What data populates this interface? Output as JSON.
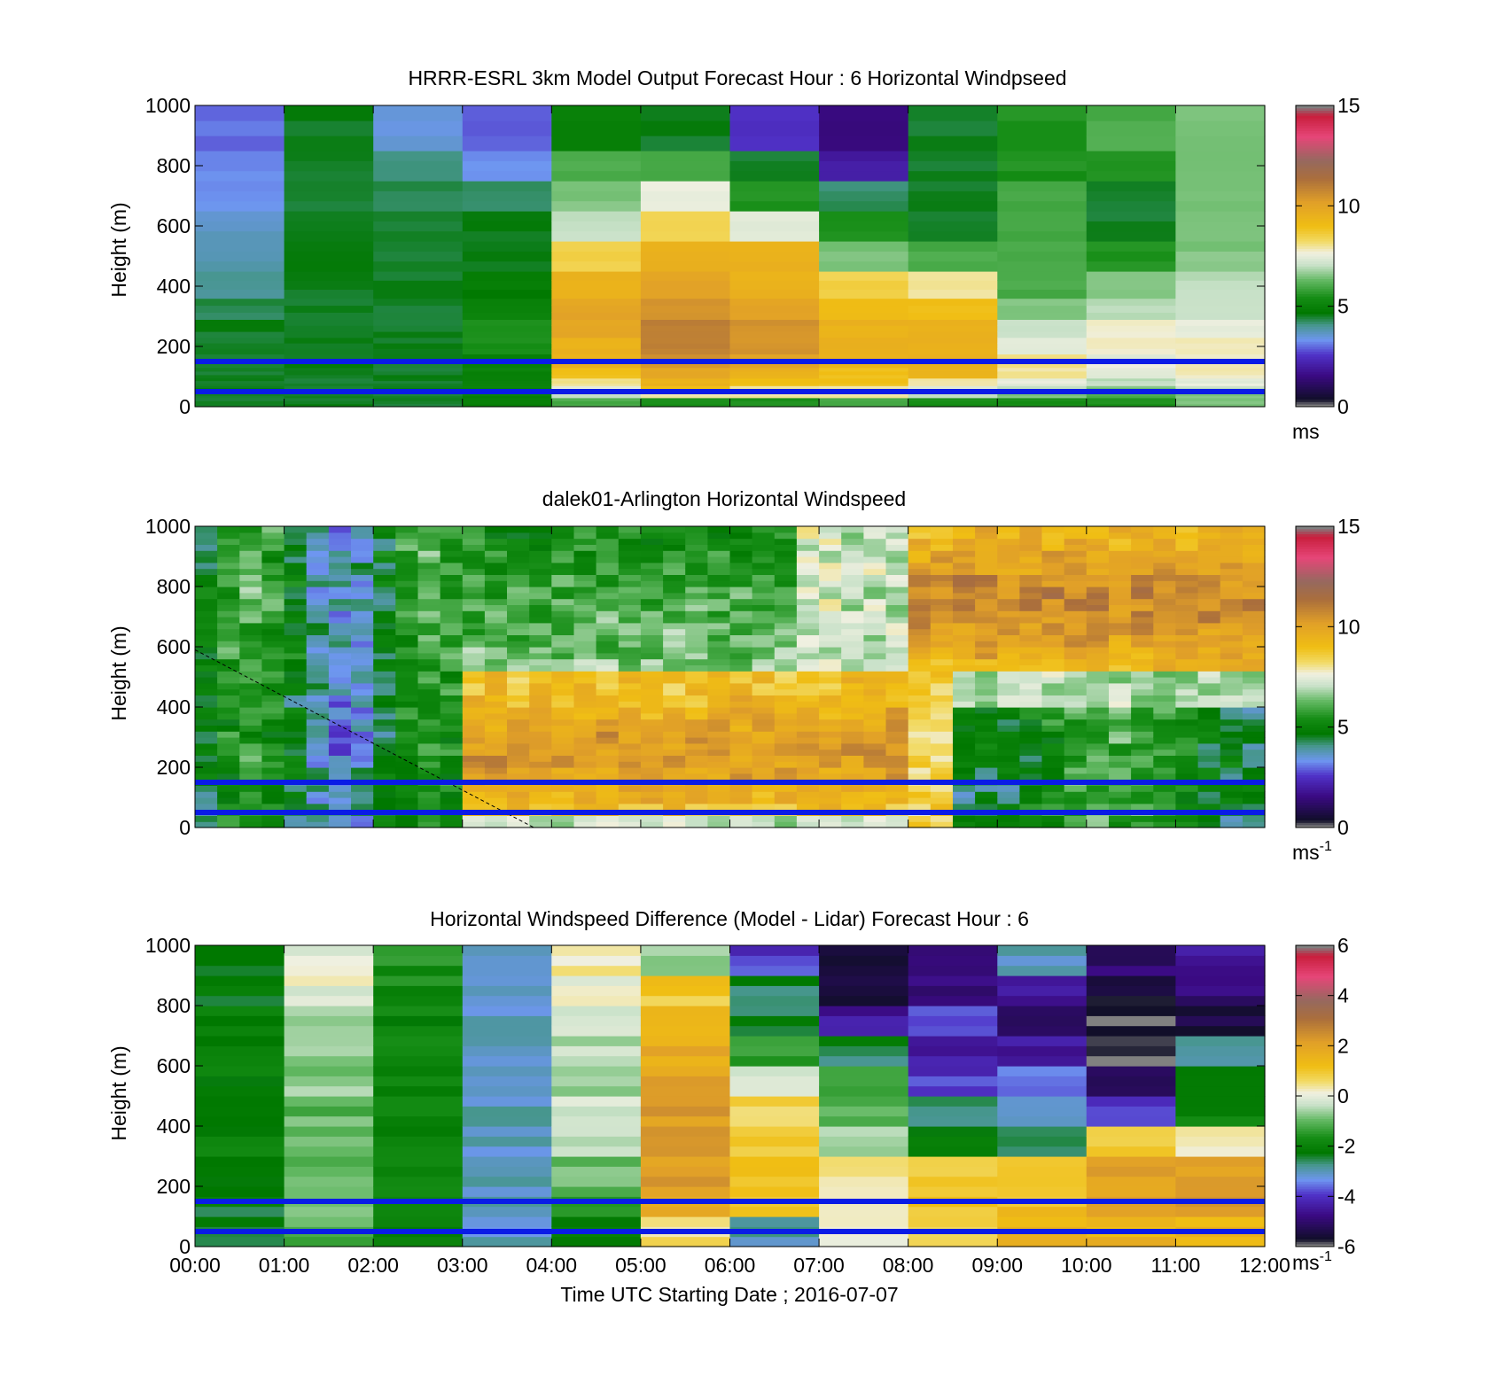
{
  "figure": {
    "xlabel": "Time UTC  Starting Date ; 2016-07-07",
    "x_ticks": [
      "00:00",
      "01:00",
      "02:00",
      "03:00",
      "04:00",
      "05:00",
      "06:00",
      "07:00",
      "08:00",
      "09:00",
      "10:00",
      "11:00",
      "12:00"
    ],
    "reference_heights_m": [
      150,
      50
    ],
    "reference_line_color": "#0a1be6"
  },
  "chart_data": [
    {
      "type": "heatmap",
      "title": "HRRR-ESRL 3km Model Output   Forecast Hour : 6 Horizontal Windpseed",
      "ylabel": "Height (m)",
      "xlabel": "",
      "ylim": [
        0,
        1000
      ],
      "y_ticks": [
        "0",
        "200",
        "400",
        "600",
        "800",
        "1000"
      ],
      "x_time_hours": [
        0,
        12
      ],
      "colorbar": {
        "range": [
          0,
          15
        ],
        "ticks": [
          "0",
          "5",
          "10",
          "15"
        ],
        "unit": "ms",
        "unit_sup": ""
      },
      "time_columns_hours": [
        0,
        1,
        2,
        3,
        4,
        5,
        6,
        7,
        8,
        9,
        10,
        11
      ],
      "height_levels_m": [
        20,
        40,
        60,
        80,
        110,
        150,
        200,
        260,
        320,
        400,
        500,
        600,
        700,
        800,
        900
      ],
      "values": [
        [
          4.5,
          4.5,
          4.5,
          5.0,
          6.0,
          5.5,
          5.5,
          6.0,
          5.5,
          5.5,
          5.5,
          6.5
        ],
        [
          4.5,
          4.5,
          4.5,
          5.0,
          7.0,
          8.0,
          8.0,
          8.0,
          7.0,
          6.5,
          6.0,
          6.5
        ],
        [
          4.5,
          4.5,
          4.5,
          5.0,
          7.5,
          9.0,
          8.0,
          8.0,
          7.5,
          7.0,
          6.5,
          7.0
        ],
        [
          4.5,
          4.5,
          4.5,
          5.0,
          8.0,
          9.5,
          9.0,
          9.0,
          8.0,
          7.5,
          7.0,
          7.5
        ],
        [
          4.5,
          4.5,
          4.5,
          5.0,
          9.0,
          10.0,
          9.5,
          9.0,
          9.5,
          8.0,
          7.5,
          7.8
        ],
        [
          4.5,
          4.5,
          4.5,
          5.0,
          9.5,
          10.5,
          10.0,
          9.5,
          9.5,
          8.0,
          7.5,
          7.8
        ],
        [
          4.5,
          4.5,
          4.5,
          5.5,
          9.5,
          11.0,
          10.5,
          9.5,
          9.5,
          7.5,
          7.8,
          7.8
        ],
        [
          4.5,
          4.5,
          4.5,
          5.5,
          10.0,
          11.0,
          10.5,
          9.5,
          9.5,
          7.0,
          7.8,
          7.5
        ],
        [
          4.3,
          4.5,
          4.5,
          5.0,
          10.0,
          10.5,
          10.0,
          9.0,
          9.0,
          6.5,
          7.0,
          7.0
        ],
        [
          4.0,
          4.5,
          4.5,
          4.8,
          9.5,
          10.0,
          9.5,
          8.5,
          8.0,
          6.0,
          6.5,
          7.0
        ],
        [
          3.8,
          4.5,
          4.5,
          4.5,
          8.5,
          9.5,
          9.5,
          6.5,
          6.0,
          6.0,
          5.5,
          6.5
        ],
        [
          3.6,
          4.5,
          4.5,
          4.5,
          7.0,
          8.5,
          7.5,
          5.5,
          4.5,
          6.0,
          4.5,
          6.5
        ],
        [
          3.3,
          4.5,
          4.3,
          4.2,
          6.5,
          7.5,
          5.5,
          4.2,
          4.5,
          6.0,
          4.5,
          6.5
        ],
        [
          3.2,
          4.5,
          4.2,
          3.2,
          6.0,
          6.0,
          4.5,
          2.0,
          4.5,
          5.5,
          5.5,
          6.5
        ],
        [
          3.0,
          4.5,
          3.5,
          2.8,
          5.0,
          4.5,
          2.5,
          1.5,
          4.5,
          5.5,
          6.0,
          6.5
        ]
      ]
    },
    {
      "type": "heatmap",
      "title": "dalek01-Arlington  Horizontal Windspeed",
      "ylabel": "Height (m)",
      "xlabel": "",
      "ylim": [
        0,
        1000
      ],
      "y_ticks": [
        "0",
        "200",
        "400",
        "600",
        "800",
        "1000"
      ],
      "x_time_hours": [
        0,
        12
      ],
      "colorbar": {
        "range": [
          0,
          15
        ],
        "ticks": [
          "0",
          "5",
          "10",
          "15"
        ],
        "unit": "ms",
        "unit_sup": "-1"
      },
      "time_columns_hours": [
        0,
        0.25,
        0.5,
        0.75,
        1,
        1.25,
        1.5,
        1.75,
        2,
        2.25,
        2.5,
        2.75,
        3,
        3.25,
        3.5,
        3.75,
        4,
        4.25,
        4.5,
        4.75,
        5,
        5.25,
        5.5,
        5.75,
        6,
        6.25,
        6.5,
        6.75,
        7,
        7.25,
        7.5,
        7.75,
        8,
        8.25,
        8.5,
        8.75,
        9,
        9.25,
        9.5,
        9.75,
        10,
        10.25,
        10.5,
        10.75,
        11,
        11.25,
        11.5,
        11.75
      ],
      "height_levels_m": [
        20,
        60,
        100,
        140,
        180,
        220,
        260,
        300,
        340,
        380,
        420,
        460,
        500,
        540,
        580,
        620,
        660,
        700,
        740,
        780,
        820,
        860,
        900,
        940,
        980
      ],
      "dashed_line": {
        "x_hours": [
          0,
          3.8
        ],
        "y_m": [
          590,
          0
        ]
      }
    },
    {
      "type": "heatmap",
      "title": "Horizontal Windspeed Difference (Model - Lidar) Forecast Hour : 6",
      "ylabel": "Height (m)",
      "xlabel": "Time UTC  Starting Date ; 2016-07-07",
      "ylim": [
        0,
        1000
      ],
      "y_ticks": [
        "0",
        "200",
        "400",
        "600",
        "800",
        "1000"
      ],
      "x_time_hours": [
        0,
        12
      ],
      "colorbar": {
        "range": [
          -6,
          6
        ],
        "ticks": [
          "-6",
          "-4",
          "-2",
          "0",
          "2",
          "4",
          "6"
        ],
        "unit": "ms",
        "unit_sup": "-1"
      },
      "time_columns_hours": [
        0,
        1,
        2,
        3,
        4,
        5,
        6,
        7,
        8,
        9,
        10,
        11
      ],
      "height_levels_m": [
        50,
        150,
        250,
        350,
        450,
        550,
        650,
        750,
        850,
        950
      ],
      "values": [
        [
          -2.2,
          -1.2,
          -2.0,
          -3.0,
          -2.0,
          0.5,
          -3.0,
          0.3,
          1.0,
          1.5,
          1.5,
          1.5
        ],
        [
          -2.3,
          -1.0,
          -1.8,
          -3.0,
          -1.5,
          2.0,
          1.0,
          0.5,
          1.0,
          1.2,
          2.0,
          2.5
        ],
        [
          -2.1,
          -1.0,
          -1.9,
          -3.0,
          -0.8,
          2.2,
          1.2,
          0.4,
          0.8,
          1.0,
          2.2,
          2.0
        ],
        [
          -2.0,
          -0.8,
          -2.0,
          -3.0,
          -0.5,
          2.3,
          1.0,
          -0.5,
          -2.0,
          -2.5,
          1.0,
          0.5
        ],
        [
          -2.2,
          -1.0,
          -1.8,
          -3.0,
          -0.3,
          2.2,
          0.8,
          -1.0,
          -2.5,
          -3.0,
          -4.0,
          -2.0
        ],
        [
          -2.0,
          -0.8,
          -1.9,
          -3.0,
          -0.7,
          2.0,
          0.0,
          -1.5,
          -4.0,
          -3.5,
          -5.5,
          -2.5
        ],
        [
          -2.2,
          -0.5,
          -1.7,
          -3.0,
          -0.5,
          1.8,
          -1.5,
          -2.5,
          -4.5,
          -4.5,
          -6.0,
          -3.0
        ],
        [
          -2.1,
          -0.5,
          -2.0,
          -3.0,
          -0.2,
          1.5,
          -2.5,
          -4.5,
          -4.0,
          -5.0,
          -6.0,
          -5.5
        ],
        [
          -2.2,
          0.0,
          -1.8,
          -3.0,
          0.0,
          1.0,
          -2.5,
          -5.5,
          -5.0,
          -4.5,
          -5.8,
          -5.0
        ],
        [
          -2.4,
          0.0,
          -1.7,
          -3.0,
          0.3,
          -0.8,
          -4.0,
          -5.8,
          -5.2,
          -3.0,
          -5.0,
          -4.5
        ]
      ]
    }
  ]
}
